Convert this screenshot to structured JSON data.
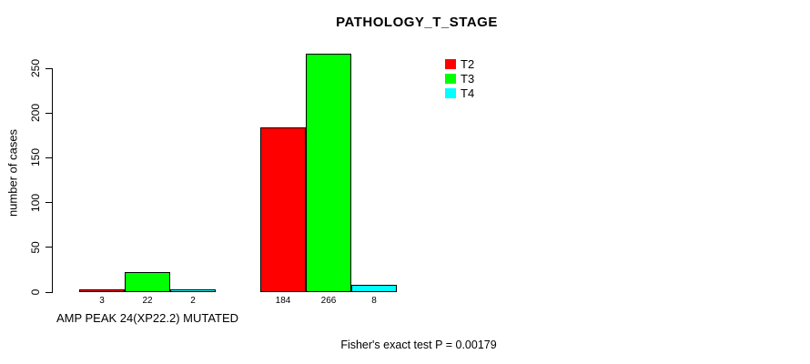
{
  "chart_data": {
    "type": "bar",
    "title": "PATHOLOGY_T_STAGE",
    "ylabel": "number of cases",
    "xlabel": "",
    "ylim": [
      0,
      250
    ],
    "yticks": [
      0,
      50,
      100,
      150,
      200,
      250
    ],
    "grid": false,
    "legend_position": "top-right",
    "categories": [
      "AMP PEAK 24(XP22.2) MUTATED",
      ""
    ],
    "series": [
      {
        "name": "T2",
        "color": "#ff0000",
        "values": [
          3,
          184
        ]
      },
      {
        "name": "T3",
        "color": "#00ff00",
        "values": [
          22,
          266
        ]
      },
      {
        "name": "T4",
        "color": "#00ffff",
        "values": [
          2,
          8
        ]
      }
    ],
    "bar_value_labels_shown": true,
    "footnote": "Fisher's exact test P = 0.00179",
    "axis_color": "#000000",
    "background_color": "#ffffff"
  }
}
